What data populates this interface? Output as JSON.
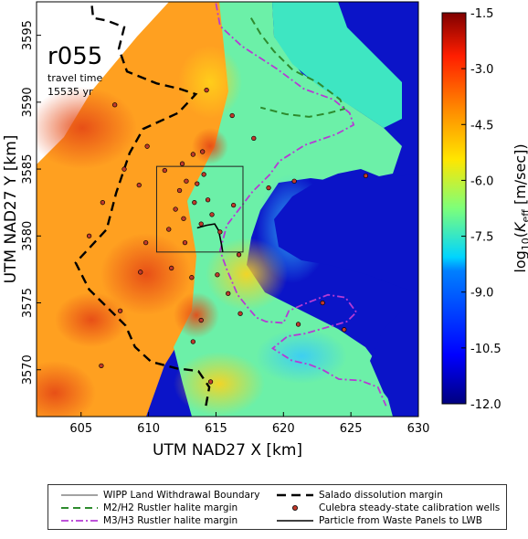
{
  "panel": {
    "label": "r055",
    "travel_label": "travel time",
    "travel_value": "15535 yr"
  },
  "axes": {
    "xlabel": "UTM NAD27 X [km]",
    "ylabel": "UTM NAD27 Y [km]",
    "xlim": [
      601.7,
      630
    ],
    "ylim": [
      3566.5,
      3597.5
    ],
    "xticks": [
      "605",
      "610",
      "615",
      "620",
      "625",
      "630"
    ],
    "yticks": [
      "3570",
      "3575",
      "3580",
      "3585",
      "3590",
      "3595"
    ]
  },
  "colorbar": {
    "label_prefix": "log",
    "label_sub": "10",
    "label_var": "K",
    "label_var_sub": "eff",
    "label_units": " [m/sec])",
    "min": -12.0,
    "max": -1.5,
    "ticks": [
      "-1.5",
      "-3.0",
      "-4.5",
      "-6.0",
      "-7.5",
      "-9.0",
      "-10.5",
      "-12.0"
    ]
  },
  "wipp_boundary": {
    "x0": 610.6,
    "x1": 617.0,
    "y0": 3578.8,
    "y1": 3585.2
  },
  "wells": [
    [
      607.5,
      3589.8
    ],
    [
      609.9,
      3586.7
    ],
    [
      612.5,
      3585.4
    ],
    [
      613.3,
      3586.1
    ],
    [
      614.0,
      3586.3
    ],
    [
      614.3,
      3590.9
    ],
    [
      616.2,
      3589.0
    ],
    [
      617.8,
      3587.3
    ],
    [
      608.2,
      3585.0
    ],
    [
      609.3,
      3583.8
    ],
    [
      606.6,
      3582.5
    ],
    [
      611.2,
      3584.9
    ],
    [
      612.3,
      3583.4
    ],
    [
      612.8,
      3584.1
    ],
    [
      613.6,
      3583.9
    ],
    [
      614.1,
      3584.6
    ],
    [
      612.0,
      3582.0
    ],
    [
      613.4,
      3582.5
    ],
    [
      614.4,
      3582.7
    ],
    [
      612.6,
      3581.3
    ],
    [
      613.9,
      3580.9
    ],
    [
      614.7,
      3581.6
    ],
    [
      611.5,
      3580.5
    ],
    [
      612.7,
      3579.5
    ],
    [
      615.3,
      3580.3
    ],
    [
      616.3,
      3582.3
    ],
    [
      618.9,
      3583.6
    ],
    [
      620.8,
      3584.1
    ],
    [
      605.6,
      3580.0
    ],
    [
      609.4,
      3577.3
    ],
    [
      611.7,
      3577.6
    ],
    [
      613.2,
      3576.9
    ],
    [
      615.1,
      3577.1
    ],
    [
      615.9,
      3575.7
    ],
    [
      616.8,
      3574.2
    ],
    [
      613.9,
      3573.7
    ],
    [
      613.3,
      3572.1
    ],
    [
      607.9,
      3574.4
    ],
    [
      616.7,
      3578.6
    ],
    [
      622.9,
      3575.0
    ],
    [
      621.1,
      3573.4
    ],
    [
      624.5,
      3573.0
    ],
    [
      606.5,
      3570.3
    ],
    [
      614.6,
      3569.1
    ],
    [
      609.8,
      3579.5
    ],
    [
      626.1,
      3584.5
    ]
  ],
  "contour_sample_points": {
    "salado": [
      [
        605.8,
        3597.2
      ],
      [
        605.9,
        3596.3
      ],
      [
        606.9,
        3596.1
      ],
      [
        608.2,
        3595.6
      ],
      [
        607.8,
        3594.0
      ],
      [
        608.4,
        3592.3
      ],
      [
        610.6,
        3591.4
      ],
      [
        612.3,
        3591.0
      ],
      [
        613.5,
        3590.6
      ],
      [
        612.2,
        3589.2
      ],
      [
        609.6,
        3588.0
      ],
      [
        608.6,
        3586.2
      ],
      [
        607.6,
        3583.2
      ],
      [
        606.9,
        3580.5
      ],
      [
        604.6,
        3578.0
      ],
      [
        605.6,
        3576.0
      ],
      [
        607.1,
        3574.5
      ],
      [
        608.3,
        3573.3
      ],
      [
        609.0,
        3571.7
      ],
      [
        610.2,
        3570.6
      ],
      [
        612.1,
        3570.1
      ],
      [
        613.7,
        3569.9
      ],
      [
        614.5,
        3568.7
      ],
      [
        614.2,
        3567.0
      ]
    ],
    "m2h2": [
      [
        617.6,
        3596.3
      ],
      [
        618.3,
        3595.1
      ],
      [
        619.3,
        3593.8
      ],
      [
        620.7,
        3592.4
      ],
      [
        622.5,
        3591.5
      ],
      [
        624.2,
        3590.2
      ],
      [
        624.5,
        3589.5
      ],
      [
        623.4,
        3589.2
      ],
      [
        621.9,
        3588.9
      ],
      [
        620.2,
        3589.1
      ],
      [
        618.3,
        3589.6
      ]
    ],
    "m3h3": [
      [
        615.0,
        3597.4
      ],
      [
        615.3,
        3595.7
      ],
      [
        616.9,
        3594.2
      ],
      [
        619.5,
        3592.5
      ],
      [
        621.5,
        3591.0
      ],
      [
        623.7,
        3590.2
      ],
      [
        624.9,
        3589.2
      ],
      [
        625.2,
        3588.3
      ],
      [
        623.9,
        3587.6
      ],
      [
        621.6,
        3586.8
      ],
      [
        619.7,
        3585.6
      ],
      [
        619.0,
        3584.6
      ],
      [
        617.7,
        3583.3
      ],
      [
        615.8,
        3580.8
      ],
      [
        615.3,
        3578.9
      ],
      [
        615.8,
        3577.5
      ],
      [
        616.6,
        3575.6
      ],
      [
        617.4,
        3574.6
      ],
      [
        618.0,
        3573.9
      ],
      [
        618.7,
        3573.6
      ],
      [
        620.0,
        3573.5
      ],
      [
        620.4,
        3574.4
      ],
      [
        621.5,
        3574.9
      ],
      [
        623.3,
        3575.6
      ],
      [
        624.6,
        3575.4
      ],
      [
        625.4,
        3574.3
      ],
      [
        624.7,
        3573.6
      ],
      [
        621.6,
        3572.7
      ],
      [
        620.3,
        3572.5
      ],
      [
        619.2,
        3571.6
      ],
      [
        620.6,
        3570.7
      ],
      [
        621.9,
        3570.4
      ],
      [
        622.9,
        3570.0
      ],
      [
        624.1,
        3569.3
      ],
      [
        625.7,
        3569.2
      ],
      [
        627.0,
        3568.7
      ],
      [
        627.6,
        3567.3
      ]
    ],
    "particle": [
      [
        613.6,
        3580.6
      ],
      [
        614.3,
        3580.8
      ],
      [
        614.9,
        3580.9
      ],
      [
        615.2,
        3580.4
      ],
      [
        615.4,
        3579.4
      ],
      [
        615.5,
        3578.8
      ]
    ]
  },
  "legend": {
    "wipp": "WIPP Land Withdrawal Boundary",
    "m2h2": "M2/H2 Rustler halite margin",
    "m3h3": "M3/H3 Rustler halite margin",
    "salado": "Salado dissolution margin",
    "wells": "Culebra steady-state calibration wells",
    "particle": "Particle from Waste Panels to LWB"
  },
  "colors": {
    "salado": "#000000",
    "m2h2": "#2e8b2e",
    "m3h3": "#b53bd4",
    "well_fill": "#c0392b",
    "low_region": "#0b14c8"
  }
}
